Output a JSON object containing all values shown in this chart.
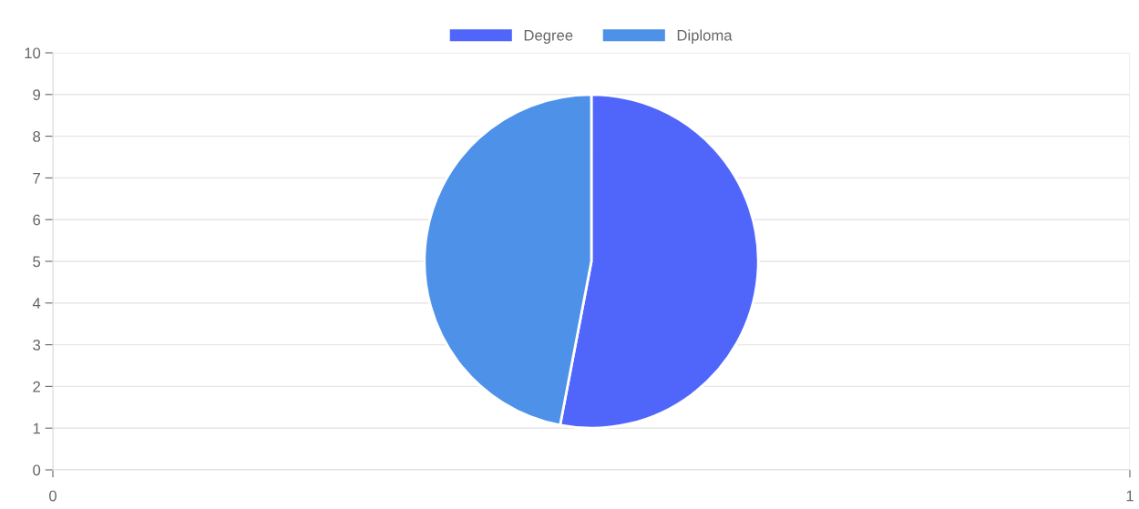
{
  "chart_data": [
    {
      "type": "scatter",
      "xlim": [
        0,
        1
      ],
      "xticks": [
        0,
        1
      ],
      "ylim": [
        0,
        10
      ],
      "yticks": [
        0,
        1,
        2,
        3,
        4,
        5,
        6,
        7,
        8,
        9,
        10
      ],
      "grid": true
    },
    {
      "type": "pie",
      "categories": [
        "Degree",
        "Diploma"
      ],
      "values": [
        53,
        47
      ],
      "colors": [
        "#5066fb",
        "#4d91e8"
      ],
      "legend": "top"
    }
  ]
}
